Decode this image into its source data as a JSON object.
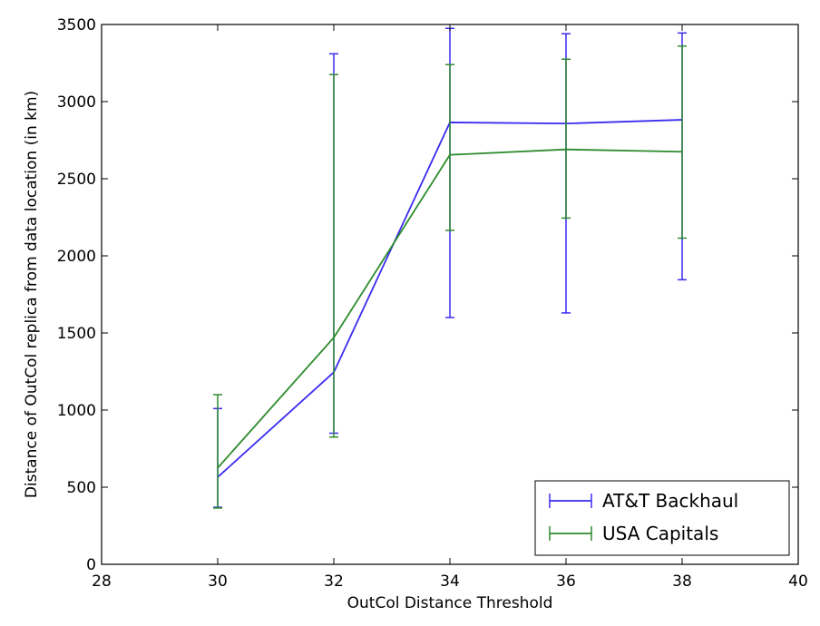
{
  "chart_data": {
    "type": "line",
    "title": "",
    "xlabel": "OutCol Distance Threshold",
    "ylabel": "Distance of OutCol replica from data location (in km)",
    "xlim": [
      28,
      40
    ],
    "ylim": [
      0,
      3500
    ],
    "xticks": [
      28,
      30,
      32,
      34,
      36,
      38,
      40
    ],
    "yticks": [
      0,
      500,
      1000,
      1500,
      2000,
      2500,
      3000,
      3500
    ],
    "grid": false,
    "legend_position": "bottom-right",
    "series": [
      {
        "name": "AT&T Backhaul",
        "color": "#3a2cf0",
        "x": [
          30,
          32,
          34,
          36,
          38
        ],
        "y": [
          565,
          1245,
          2865,
          2858,
          2882
        ],
        "err_low": [
          370,
          850,
          1600,
          1630,
          1845
        ],
        "err_high": [
          1010,
          3310,
          3475,
          3440,
          3445
        ]
      },
      {
        "name": "USA Capitals",
        "color": "#2e8b2e",
        "x": [
          30,
          32,
          34,
          36,
          38
        ],
        "y": [
          625,
          1470,
          2655,
          2690,
          2675
        ],
        "err_low": [
          365,
          825,
          2165,
          2245,
          2115
        ],
        "err_high": [
          1100,
          3175,
          3240,
          3275,
          3360
        ]
      }
    ]
  }
}
